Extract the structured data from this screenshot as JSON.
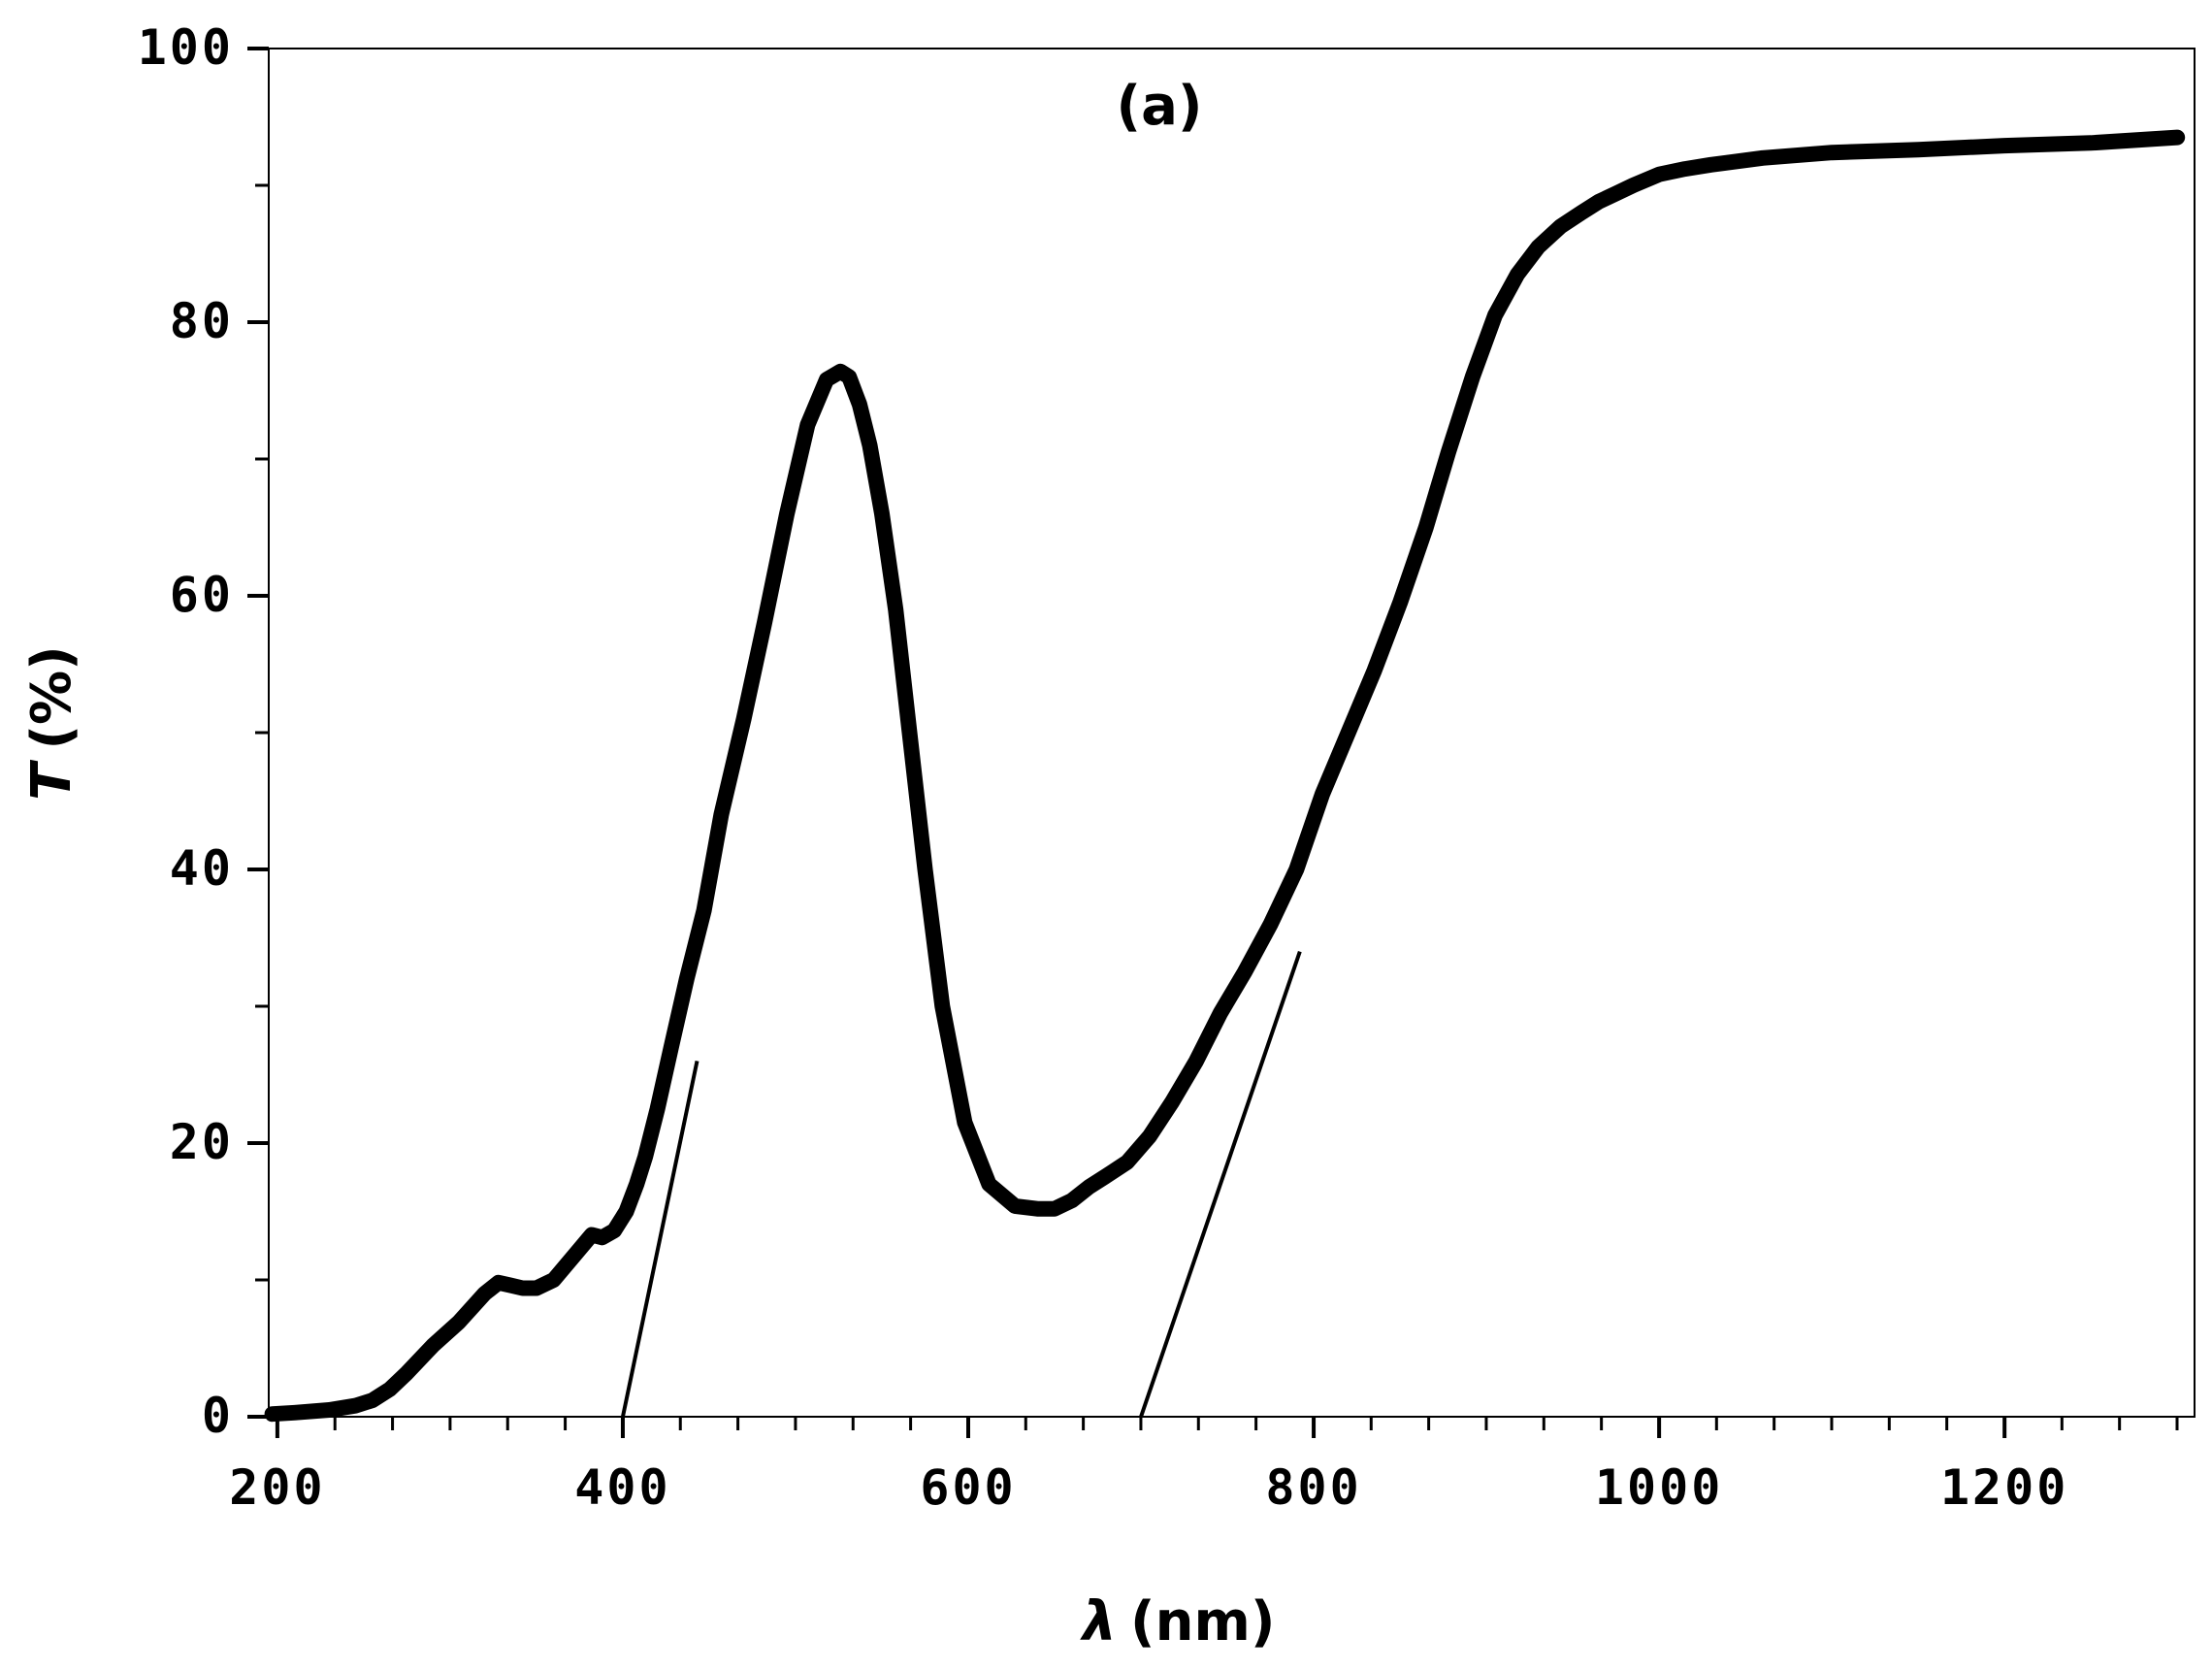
{
  "chart_data": {
    "type": "line",
    "annotation": "(a)",
    "xlabel_symbol": "λ",
    "xlabel_unit": "(nm)",
    "ylabel_symbol": "T",
    "ylabel_unit": "(%)",
    "xlim": [
      195,
      1310
    ],
    "ylim": [
      0,
      100
    ],
    "x_ticks": [
      200,
      400,
      600,
      800,
      1000,
      1200
    ],
    "y_ticks": [
      0,
      20,
      40,
      60,
      80,
      100
    ],
    "x_minor_step": 33.33,
    "y_minor_step": 10,
    "grid": false,
    "line_color": "#000000",
    "series": [
      {
        "x": [
          197,
          210,
          230,
          245,
          255,
          265,
          275,
          290,
          305,
          320,
          328,
          335,
          342,
          350,
          360,
          372,
          382,
          388,
          395,
          402,
          408,
          413,
          420,
          428,
          437,
          447,
          457,
          470,
          482,
          495,
          507,
          518,
          526,
          531,
          537,
          543,
          550,
          558,
          566,
          575,
          585,
          598,
          612,
          627,
          640,
          650,
          660,
          670,
          680,
          692,
          705,
          718,
          732,
          746,
          760,
          775,
          790,
          805,
          820,
          835,
          850,
          865,
          878,
          892,
          905,
          918,
          930,
          943,
          955,
          965,
          975,
          985,
          1000,
          1015,
          1030,
          1060,
          1100,
          1150,
          1200,
          1250,
          1300
        ],
        "y": [
          0.2,
          0.3,
          0.5,
          0.8,
          1.2,
          2.0,
          3.2,
          5.2,
          6.9,
          9.0,
          9.8,
          9.6,
          9.4,
          9.4,
          10.0,
          11.8,
          13.3,
          13.1,
          13.6,
          15.0,
          17.0,
          19.0,
          22.5,
          27.0,
          32.0,
          37.0,
          44.0,
          51.0,
          58.0,
          66.0,
          72.5,
          75.8,
          76.4,
          76.0,
          74.0,
          71.0,
          66.0,
          59.0,
          50.0,
          40.0,
          30.0,
          21.5,
          17.0,
          15.4,
          15.2,
          15.2,
          15.8,
          16.8,
          17.6,
          18.6,
          20.5,
          23.0,
          26.0,
          29.5,
          32.5,
          36.0,
          40.0,
          45.5,
          50.0,
          54.5,
          59.5,
          65.0,
          70.5,
          76.0,
          80.5,
          83.5,
          85.5,
          87.0,
          88.0,
          88.8,
          89.4,
          90.0,
          90.8,
          91.2,
          91.5,
          92.0,
          92.4,
          92.6,
          92.9,
          93.1,
          93.5
        ]
      }
    ],
    "tangent_lines": [
      {
        "x": [
          400,
          443
        ],
        "y": [
          0,
          26
        ]
      },
      {
        "x": [
          700,
          792
        ],
        "y": [
          0,
          34
        ]
      }
    ]
  }
}
